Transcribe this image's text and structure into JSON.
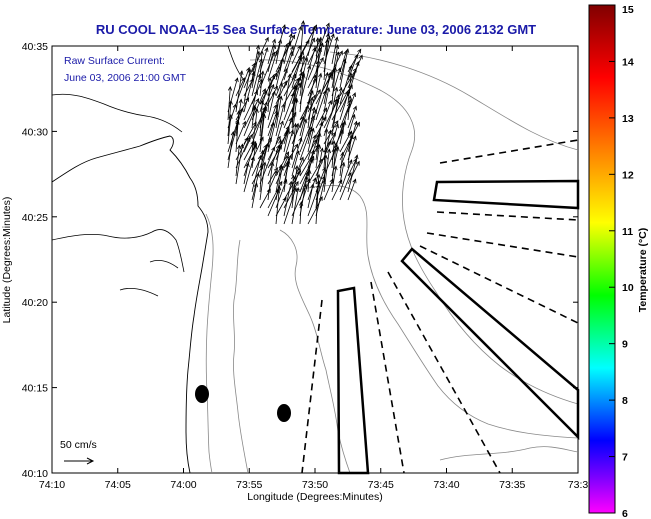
{
  "title": "RU COOL  NOAA–15  Sea Surface Temperature:  June 03, 2006 2132 GMT",
  "annotation": {
    "line1": "Raw Surface Current:",
    "line2": "June 03, 2006 21:00 GMT"
  },
  "axes": {
    "xlabel": "Longitude (Degrees:Minutes)",
    "ylabel": "Latitude (Degrees:Minutes)",
    "x_ticks": [
      "74:10",
      "74:05",
      "74:00",
      "73:55",
      "73:50",
      "73:45",
      "73:40",
      "73:35",
      "73:3"
    ],
    "y_ticks": [
      "40:35",
      "40:30",
      "40:25",
      "40:20",
      "40:15",
      "40:10"
    ]
  },
  "scale_label": "50 cm/s",
  "colorbar": {
    "label": "Temperature (°C)",
    "ticks": [
      "15",
      "14",
      "13",
      "12",
      "11",
      "10",
      "9",
      "8",
      "7",
      "6"
    ],
    "colors": [
      "#ff00ff",
      "#7a00ff",
      "#0000ff",
      "#0080ff",
      "#00ffff",
      "#00ff80",
      "#00ff00",
      "#80ff00",
      "#ffff00",
      "#ffbf00",
      "#ff8000",
      "#ff4000",
      "#ff0000",
      "#c00000",
      "#800000"
    ]
  }
}
